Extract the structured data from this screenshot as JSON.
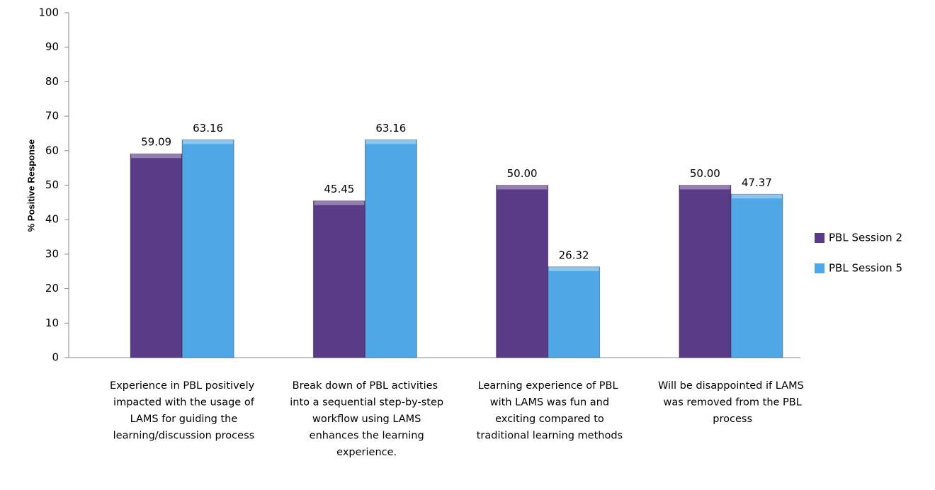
{
  "chart_data": {
    "type": "bar",
    "y_label": "% Positive  Response",
    "categories": [
      "Experience in PBL positively impacted with the usage of LAMS for guiding the learning/discussion process",
      "Break down of PBL activities into a sequential step-by-step workflow using LAMS enhances the learning experience.",
      "Learning experience of PBL with LAMS was fun and exciting compared to traditional learning methods",
      "Will be disappointed if LAMS was removed from the PBL process"
    ],
    "series": [
      {
        "name": "PBL Session 2",
        "color": "#5a3b87",
        "values": [
          59.09,
          45.45,
          50,
          50
        ],
        "value_labels": [
          "59.09",
          "45.45",
          "50.00",
          "50.00"
        ]
      },
      {
        "name": "PBL Session 5",
        "color": "#4fa7e6",
        "values": [
          63.16,
          63.16,
          26.32,
          47.37
        ],
        "value_labels": [
          "63.16",
          "63.16",
          "26.32",
          "47.37"
        ]
      }
    ],
    "ylim": [
      0,
      100
    ],
    "yticks": [
      0,
      10,
      20,
      30,
      40,
      50,
      60,
      70,
      80,
      90,
      100
    ],
    "grid": false,
    "legend": "right"
  }
}
